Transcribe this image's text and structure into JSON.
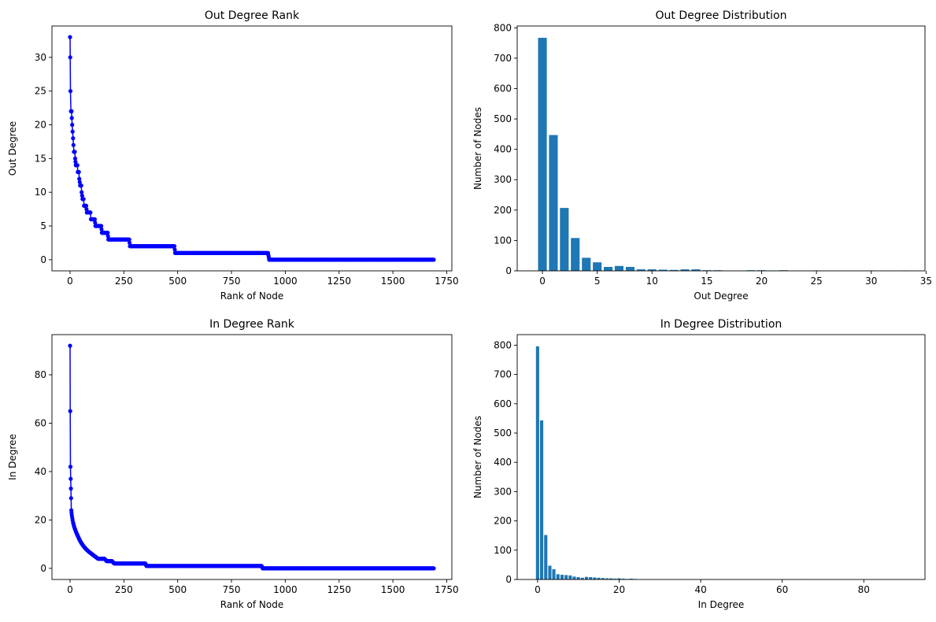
{
  "figure": {
    "background": "#ffffff"
  },
  "chart_data": [
    {
      "type": "line",
      "title": "Out Degree Rank",
      "xlabel": "Rank of Node",
      "ylabel": "Out Degree",
      "xlim": [
        -84,
        1774
      ],
      "ylim": [
        -1.65,
        34.65
      ],
      "xticks": [
        0,
        250,
        500,
        750,
        1000,
        1250,
        1500,
        1750
      ],
      "xtick_labels": [
        "0",
        "250",
        "500",
        "750",
        "1000",
        "1250",
        "1500",
        "1750"
      ],
      "yticks": [
        0,
        5,
        10,
        15,
        20,
        25,
        30
      ],
      "ytick_labels": [
        "0",
        "5",
        "10",
        "15",
        "20",
        "25",
        "30"
      ],
      "grid": false,
      "legend": "none",
      "color": "#0000ff",
      "marker": "circle",
      "series": [
        {
          "points": [
            [
              0,
              33
            ],
            [
              1,
              30
            ],
            [
              2,
              25
            ],
            [
              4,
              22
            ],
            [
              7,
              22
            ],
            [
              8,
              21
            ],
            [
              10,
              20
            ],
            [
              12,
              19
            ],
            [
              14,
              18
            ],
            [
              16,
              17
            ],
            [
              18,
              16
            ],
            [
              22,
              16
            ],
            [
              24,
              15
            ],
            [
              27,
              14
            ],
            [
              34,
              14
            ],
            [
              36,
              13
            ],
            [
              41,
              13
            ],
            [
              43,
              12
            ],
            [
              47,
              11
            ],
            [
              52,
              11
            ],
            [
              54,
              10
            ],
            [
              58,
              9
            ],
            [
              63,
              9
            ],
            [
              65,
              8
            ],
            [
              75,
              8
            ],
            [
              78,
              7
            ],
            [
              95,
              7
            ],
            [
              97,
              6
            ],
            [
              115,
              6
            ],
            [
              118,
              5
            ],
            [
              145,
              5
            ],
            [
              148,
              4
            ],
            [
              175,
              4
            ],
            [
              178,
              3
            ],
            [
              275,
              3
            ],
            [
              278,
              2
            ],
            [
              485,
              2
            ],
            [
              488,
              1
            ],
            [
              920,
              1
            ],
            [
              925,
              0
            ],
            [
              1690,
              0
            ]
          ]
        }
      ]
    },
    {
      "type": "bar",
      "title": "Out Degree Distribution",
      "xlabel": "Out Degree",
      "ylabel": "Number of Nodes",
      "xlim": [
        -2.3,
        34.9
      ],
      "ylim": [
        0,
        806
      ],
      "xticks": [
        0,
        5,
        10,
        15,
        20,
        25,
        30,
        35
      ],
      "xtick_labels": [
        "0",
        "5",
        "10",
        "15",
        "20",
        "25",
        "30",
        "35"
      ],
      "yticks": [
        0,
        100,
        200,
        300,
        400,
        500,
        600,
        700,
        800
      ],
      "ytick_labels": [
        "0",
        "100",
        "200",
        "300",
        "400",
        "500",
        "600",
        "700",
        "800"
      ],
      "grid": false,
      "legend": "none",
      "color": "#1f77b4",
      "bar_width": 0.8,
      "x": [
        0,
        1,
        2,
        3,
        4,
        5,
        6,
        7,
        8,
        9,
        10,
        11,
        12,
        13,
        14,
        15,
        16,
        19,
        20,
        21,
        22,
        25,
        30,
        33
      ],
      "values": [
        767,
        447,
        207,
        108,
        43,
        28,
        13,
        16,
        13,
        5,
        5,
        4,
        3,
        5,
        5,
        2,
        2,
        2,
        2,
        1,
        2,
        1,
        1,
        1
      ]
    },
    {
      "type": "line",
      "title": "In Degree Rank",
      "xlabel": "Rank of Node",
      "ylabel": "In Degree",
      "xlim": [
        -84,
        1774
      ],
      "ylim": [
        -4.6,
        96.6
      ],
      "xticks": [
        0,
        250,
        500,
        750,
        1000,
        1250,
        1500,
        1750
      ],
      "xtick_labels": [
        "0",
        "250",
        "500",
        "750",
        "1000",
        "1250",
        "1500",
        "1750"
      ],
      "yticks": [
        0,
        20,
        40,
        60,
        80
      ],
      "ytick_labels": [
        "0",
        "20",
        "40",
        "60",
        "80"
      ],
      "grid": false,
      "legend": "none",
      "color": "#0000ff",
      "marker": "circle",
      "series": [
        {
          "points": [
            [
              0,
              92
            ],
            [
              1,
              65
            ],
            [
              2,
              42
            ],
            [
              3,
              37
            ],
            [
              4,
              33
            ],
            [
              5,
              29
            ],
            [
              6,
              24
            ],
            [
              7,
              23
            ],
            [
              8,
              22
            ],
            [
              10,
              21
            ],
            [
              12,
              20
            ],
            [
              14,
              19
            ],
            [
              17,
              18
            ],
            [
              20,
              17
            ],
            [
              24,
              16
            ],
            [
              28,
              15
            ],
            [
              33,
              14
            ],
            [
              38,
              13
            ],
            [
              43,
              12
            ],
            [
              49,
              11
            ],
            [
              56,
              10
            ],
            [
              64,
              9
            ],
            [
              74,
              8
            ],
            [
              86,
              7
            ],
            [
              100,
              6
            ],
            [
              115,
              5
            ],
            [
              130,
              4
            ],
            [
              160,
              4
            ],
            [
              170,
              3
            ],
            [
              195,
              3
            ],
            [
              205,
              2
            ],
            [
              350,
              2
            ],
            [
              355,
              1
            ],
            [
              890,
              1
            ],
            [
              895,
              0
            ],
            [
              1690,
              0
            ]
          ]
        }
      ]
    },
    {
      "type": "bar",
      "title": "In Degree Distribution",
      "xlabel": "In Degree",
      "ylabel": "Number of Nodes",
      "xlim": [
        -5.0,
        95.0
      ],
      "ylim": [
        0,
        836
      ],
      "xticks": [
        0,
        20,
        40,
        60,
        80
      ],
      "xtick_labels": [
        "0",
        "20",
        "40",
        "60",
        "80"
      ],
      "yticks": [
        0,
        100,
        200,
        300,
        400,
        500,
        600,
        700,
        800
      ],
      "ytick_labels": [
        "0",
        "100",
        "200",
        "300",
        "400",
        "500",
        "600",
        "700",
        "800"
      ],
      "grid": false,
      "legend": "none",
      "color": "#1f77b4",
      "bar_width": 0.8,
      "x": [
        0,
        1,
        2,
        3,
        4,
        5,
        6,
        7,
        8,
        9,
        10,
        11,
        12,
        13,
        14,
        15,
        16,
        17,
        18,
        19,
        20,
        21,
        22,
        23,
        24,
        29,
        33,
        37,
        42,
        65,
        92
      ],
      "values": [
        796,
        543,
        152,
        47,
        35,
        18,
        16,
        15,
        14,
        10,
        8,
        6,
        9,
        8,
        7,
        6,
        5,
        4,
        4,
        3,
        4,
        3,
        2,
        3,
        2,
        1,
        1,
        1,
        1,
        1,
        1
      ]
    }
  ]
}
